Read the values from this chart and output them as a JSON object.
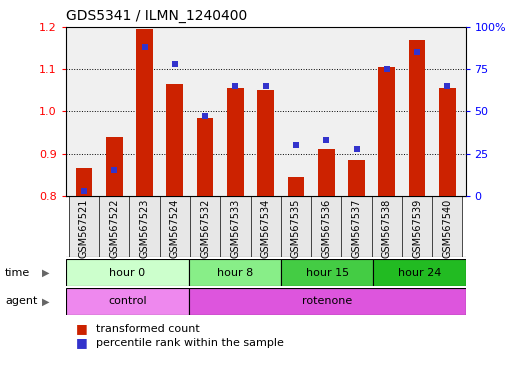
{
  "title": "GDS5341 / ILMN_1240400",
  "samples": [
    "GSM567521",
    "GSM567522",
    "GSM567523",
    "GSM567524",
    "GSM567532",
    "GSM567533",
    "GSM567534",
    "GSM567535",
    "GSM567536",
    "GSM567537",
    "GSM567538",
    "GSM567539",
    "GSM567540"
  ],
  "red_values": [
    0.865,
    0.94,
    1.195,
    1.065,
    0.985,
    1.055,
    1.05,
    0.845,
    0.91,
    0.885,
    1.105,
    1.17,
    1.055
  ],
  "blue_values": [
    3,
    15,
    88,
    78,
    47,
    65,
    65,
    30,
    33,
    28,
    75,
    85,
    65
  ],
  "ylim_left": [
    0.8,
    1.2
  ],
  "ylim_right": [
    0,
    100
  ],
  "yticks_left": [
    0.8,
    0.9,
    1.0,
    1.1,
    1.2
  ],
  "yticks_right": [
    0,
    25,
    50,
    75,
    100
  ],
  "ytick_labels_right": [
    "0",
    "25",
    "50",
    "75",
    "100%"
  ],
  "bar_color": "#cc2200",
  "dot_color": "#3333cc",
  "plot_bg": "#f0f0f0",
  "time_groups": [
    {
      "label": "hour 0",
      "start": 0,
      "end": 4,
      "color": "#ccffcc"
    },
    {
      "label": "hour 8",
      "start": 4,
      "end": 7,
      "color": "#88ee88"
    },
    {
      "label": "hour 15",
      "start": 7,
      "end": 10,
      "color": "#44cc44"
    },
    {
      "label": "hour 24",
      "start": 10,
      "end": 13,
      "color": "#22bb22"
    }
  ],
  "agent_groups": [
    {
      "label": "control",
      "start": 0,
      "end": 4,
      "color": "#ee88ee"
    },
    {
      "label": "rotenone",
      "start": 4,
      "end": 13,
      "color": "#dd55dd"
    }
  ],
  "time_row_label": "time",
  "agent_row_label": "agent",
  "legend_red": "transformed count",
  "legend_blue": "percentile rank within the sample"
}
